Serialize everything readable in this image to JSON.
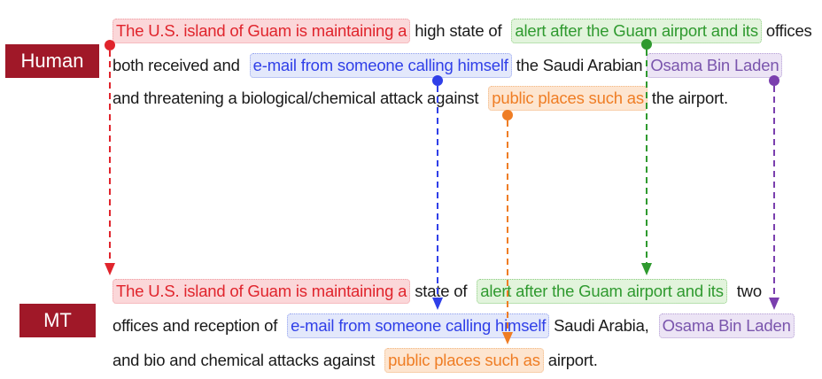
{
  "labels": {
    "human": "Human",
    "mt": "MT"
  },
  "human": {
    "line1": {
      "s1": "The U.S. island of Guam is maintaining a",
      "t1": "high state of",
      "s2": "alert after the Guam airport and its",
      "t2": "offices"
    },
    "line2": {
      "t1": "both received and",
      "s1": "e-mail from someone calling himself",
      "t2": "the Saudi Arabian",
      "s2": "Osama Bin Laden"
    },
    "line3": {
      "t1": "and threatening  a biological/chemical attack against",
      "s1": "public places such as",
      "t2": "the airport."
    }
  },
  "mt": {
    "line1": {
      "s1": "The U.S. island of Guam is maintaining a",
      "t1": "state of",
      "s2": "alert after the Guam airport and its",
      "t2": "two"
    },
    "line2": {
      "t1": "offices and reception of",
      "s1": "e-mail from someone calling himself",
      "t2": "Saudi Arabia,",
      "s2": "Osama Bin Laden"
    },
    "line3": {
      "t1": "and bio and chemical attacks against",
      "s1": "public places such as",
      "t2": "airport."
    }
  },
  "colors": {
    "red": "#e0242c",
    "green": "#2f9a2f",
    "blue": "#2f3fe8",
    "orange": "#ef7d24",
    "purple": "#7a3fae",
    "label_bg": "#a01828"
  }
}
